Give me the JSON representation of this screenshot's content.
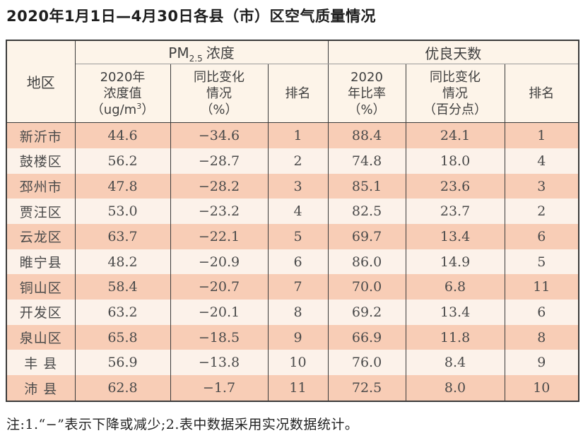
{
  "page": {
    "title": "2020年1月1日—4月30日各县（市）区空气质量情况",
    "note": "注:1.“−”表示下降或减少;2.表中数据采用实况数据统计。"
  },
  "colors": {
    "row_odd_bg": "#f8cdb6",
    "row_even_bg": "#fcf2ea",
    "header_bg": "#fdf4e9",
    "border_dark": "#3b3b3b",
    "group_divider_gray": "#9b9b9b",
    "text": "#4a4a4a"
  },
  "chart_data": {
    "type": "table",
    "title": "2020年1月1日—4月30日各县（市）区空气质量情况",
    "column_groups": [
      {
        "label_prefix": "PM",
        "label_sub": "2.5",
        "label_suffix": "浓度",
        "span": 3
      },
      {
        "label": "优良天数",
        "span": 3
      }
    ],
    "columns": [
      {
        "id": "region",
        "lines": [
          "地区"
        ]
      },
      {
        "id": "pm25_2020_value",
        "lines": [
          "2020年",
          "浓度值"
        ],
        "unit_pre": "（ug/m",
        "unit_sup": "3",
        "unit_post": "）"
      },
      {
        "id": "pm25_yoy_change",
        "lines": [
          "同比变化",
          "情况",
          "（%）"
        ]
      },
      {
        "id": "pm25_rank",
        "lines": [
          "排名"
        ]
      },
      {
        "id": "good_days_rate_2020",
        "lines": [
          "2020",
          "年比率",
          "（%）"
        ]
      },
      {
        "id": "good_days_yoy_change",
        "lines": [
          "同比变化",
          "情况",
          "（百分点）"
        ]
      },
      {
        "id": "good_days_rank",
        "lines": [
          "排名"
        ]
      }
    ],
    "rows": [
      [
        "新沂市",
        "44.6",
        "−34.6",
        "1",
        "88.4",
        "24.1",
        "1"
      ],
      [
        "鼓楼区",
        "56.2",
        "−28.7",
        "2",
        "74.8",
        "18.0",
        "4"
      ],
      [
        "邳州市",
        "47.8",
        "−28.2",
        "3",
        "85.1",
        "23.6",
        "3"
      ],
      [
        "贾汪区",
        "53.0",
        "−23.2",
        "4",
        "82.5",
        "23.7",
        "2"
      ],
      [
        "云龙区",
        "63.7",
        "−22.1",
        "5",
        "69.7",
        "13.4",
        "6"
      ],
      [
        "睢宁县",
        "48.2",
        "−20.9",
        "6",
        "86.0",
        "14.9",
        "5"
      ],
      [
        "铜山区",
        "58.4",
        "−20.7",
        "7",
        "70.0",
        "6.8",
        "11"
      ],
      [
        "开发区",
        "63.2",
        "−20.1",
        "8",
        "69.2",
        "13.4",
        "6"
      ],
      [
        "泉山区",
        "65.8",
        "−18.5",
        "9",
        "66.9",
        "11.8",
        "8"
      ],
      [
        "丰 县",
        "56.9",
        "−13.8",
        "10",
        "76.0",
        "8.4",
        "9"
      ],
      [
        "沛 县",
        "62.8",
        "−1.7",
        "11",
        "72.5",
        "8.0",
        "10"
      ]
    ]
  }
}
